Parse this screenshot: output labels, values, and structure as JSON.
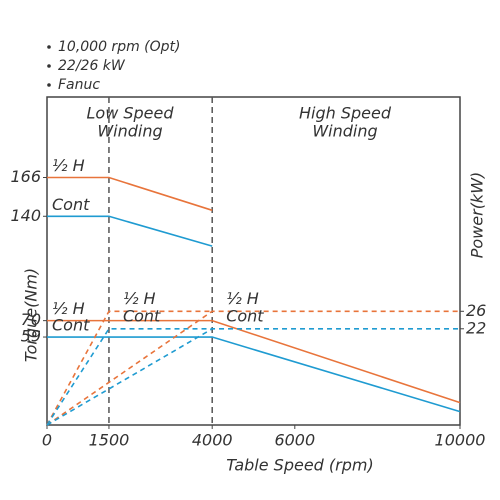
{
  "chart_data": {
    "type": "line",
    "bullets": [
      "10,000 rpm (Opt)",
      "22/26 kW",
      "Fanuc"
    ],
    "zones": [
      {
        "lines": [
          "Low Speed",
          "Winding"
        ]
      },
      {
        "lines": [
          "High Speed",
          "Winding"
        ]
      }
    ],
    "xlabel": "Table Speed (rpm)",
    "ylabel": "Torque(Nm)",
    "y2label": "Power(kW)",
    "xlim": [
      0,
      10000
    ],
    "xticks": [
      0,
      1500,
      4000,
      6000,
      10000
    ],
    "ylim": [
      0,
      220
    ],
    "yticks": [
      59,
      70,
      140,
      166
    ],
    "y2lim": [
      0,
      75
    ],
    "y2ticks": [
      22,
      26
    ],
    "vlines": [
      1500,
      4000
    ],
    "grid": false,
    "series": [
      {
        "name": "½ H",
        "color": "#e8743b",
        "linestyle": "solid",
        "x": [
          0,
          1500,
          4000
        ],
        "values": [
          166,
          166,
          144
        ]
      },
      {
        "name": "Cont",
        "color": "#1f9bd1",
        "linestyle": "solid",
        "x": [
          0,
          1500,
          4000
        ],
        "values": [
          140,
          140,
          120
        ]
      },
      {
        "name": "½ H",
        "color": "#e8743b",
        "linestyle": "solid",
        "x": [
          0,
          4000,
          10000
        ],
        "values": [
          70,
          70,
          15
        ]
      },
      {
        "name": "Cont",
        "color": "#1f9bd1",
        "linestyle": "solid",
        "x": [
          0,
          4000,
          10000
        ],
        "values": [
          59,
          59,
          9
        ]
      },
      {
        "name": "½ H",
        "color": "#e8743b",
        "linestyle": "dashed",
        "axis": "y2",
        "x": [
          0,
          1500,
          4000
        ],
        "values": [
          0,
          26,
          26
        ]
      },
      {
        "name": "Cont",
        "color": "#1f9bd1",
        "linestyle": "dashed",
        "axis": "y2",
        "x": [
          0,
          1500,
          4000
        ],
        "values": [
          0,
          22,
          22
        ]
      },
      {
        "name": "½ H",
        "color": "#e8743b",
        "linestyle": "dashed",
        "axis": "y2",
        "x": [
          0,
          4000,
          10000
        ],
        "values": [
          0,
          26,
          26
        ]
      },
      {
        "name": "Cont",
        "color": "#1f9bd1",
        "linestyle": "dashed",
        "axis": "y2",
        "x": [
          0,
          4000,
          10000
        ],
        "values": [
          0,
          22,
          22
        ]
      }
    ]
  }
}
